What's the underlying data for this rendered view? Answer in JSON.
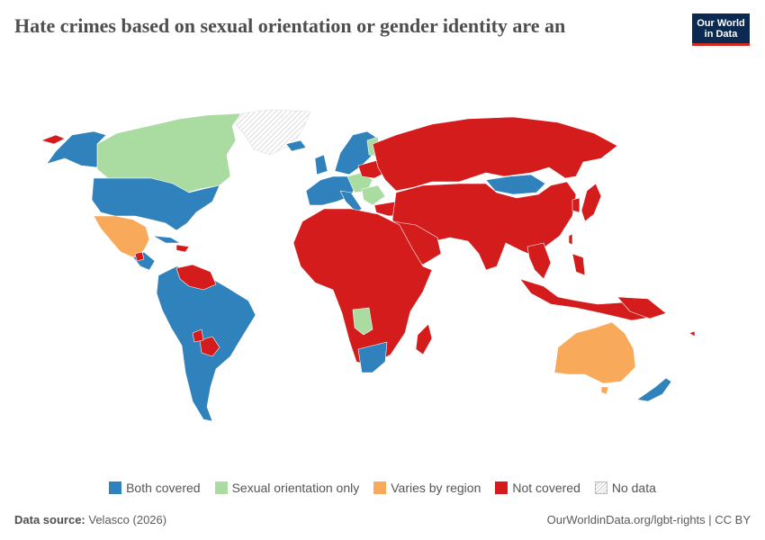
{
  "title": "Hate crimes based on sexual orientation or gender identity are an",
  "logo": {
    "line1": "Our World",
    "line2": "in Data",
    "bg": "#0c2a51",
    "accent": "#d42b21"
  },
  "colors": {
    "both": "#2f82bb",
    "sexual_orientation_only": "#aadba1",
    "varies": "#f8a95a",
    "not_covered": "#d41c1c",
    "no_data": "#f0f0f0"
  },
  "legend": [
    {
      "key": "both",
      "label": "Both covered"
    },
    {
      "key": "sexual_orientation_only",
      "label": "Sexual orientation only"
    },
    {
      "key": "varies",
      "label": "Varies by region"
    },
    {
      "key": "not_covered",
      "label": "Not covered"
    },
    {
      "key": "no_data",
      "label": "No data"
    }
  ],
  "footer": {
    "source_label": "Data source:",
    "source": "Velasco (2026)",
    "url": "OurWorldinData.org/lgbt-rights | CC BY"
  }
}
